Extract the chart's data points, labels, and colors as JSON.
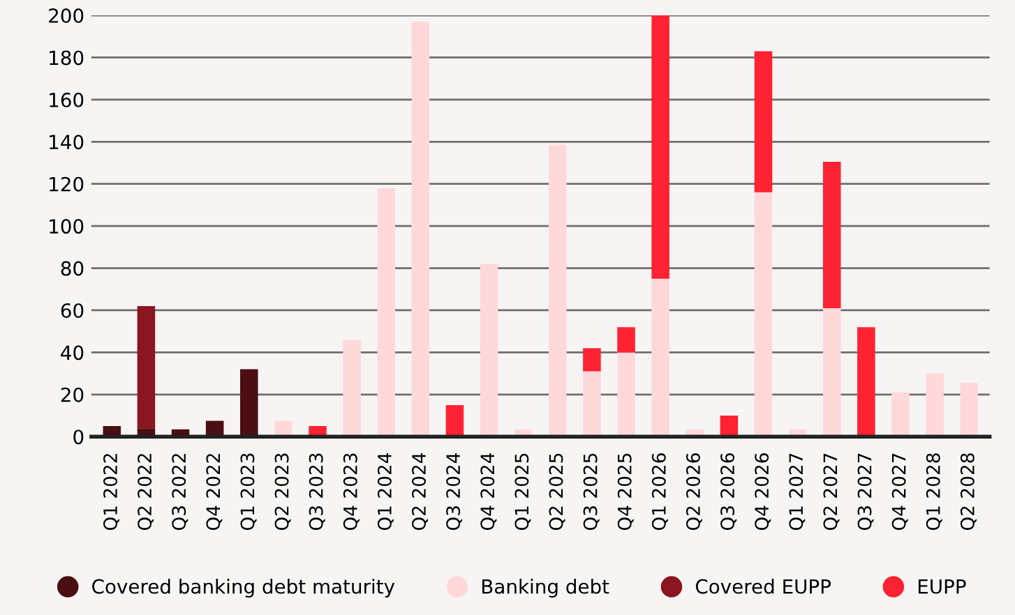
{
  "chart_data": {
    "type": "bar",
    "stacked": true,
    "categories": [
      "Q1 2022",
      "Q2 2022",
      "Q3 2022",
      "Q4 2022",
      "Q1 2023",
      "Q2 2023",
      "Q3 2023",
      "Q4 2023",
      "Q1 2024",
      "Q2 2024",
      "Q3 2024",
      "Q4 2024",
      "Q1 2025",
      "Q2 2025",
      "Q3 2025",
      "Q4 2025",
      "Q1 2026",
      "Q2 2026",
      "Q3 2026",
      "Q4 2026",
      "Q1 2027",
      "Q2 2027",
      "Q3 2027",
      "Q4 2027",
      "Q1 2028",
      "Q2 2028"
    ],
    "series": [
      {
        "name": "Covered banking debt maturity",
        "color": "#4a0e13",
        "values": [
          5,
          4,
          3.5,
          7.5,
          32,
          0,
          0,
          0,
          0,
          0,
          0,
          0,
          0,
          0,
          0,
          0,
          0,
          0,
          0,
          0,
          0,
          0,
          0,
          0,
          0,
          0
        ]
      },
      {
        "name": "Banking debt",
        "color": "#ffd8da",
        "values": [
          0,
          0,
          0,
          0,
          0,
          7.5,
          0,
          46,
          118,
          197,
          0,
          82,
          3.5,
          138.5,
          31,
          40,
          75,
          3.5,
          0,
          116,
          3.5,
          61,
          0,
          21,
          30,
          25.5
        ]
      },
      {
        "name": "Covered EUPP",
        "color": "#8b1520",
        "values": [
          0,
          58,
          0,
          0,
          0,
          0,
          0,
          0,
          0,
          0,
          0,
          0,
          0,
          0,
          0,
          0,
          0,
          0,
          0,
          0,
          0,
          0,
          0,
          0,
          0,
          0
        ]
      },
      {
        "name": "EUPP",
        "color": "#ff2232",
        "values": [
          0,
          0,
          0,
          0,
          0,
          0,
          5,
          0,
          0,
          0,
          15,
          0,
          0,
          0,
          11,
          12,
          125,
          0,
          10,
          67,
          0,
          69.5,
          52,
          0,
          0,
          0
        ]
      }
    ],
    "ylim": [
      0,
      200
    ],
    "yticks": [
      0,
      20,
      40,
      60,
      80,
      100,
      120,
      140,
      160,
      180,
      200
    ],
    "grid": "y",
    "legend": "bottom"
  }
}
